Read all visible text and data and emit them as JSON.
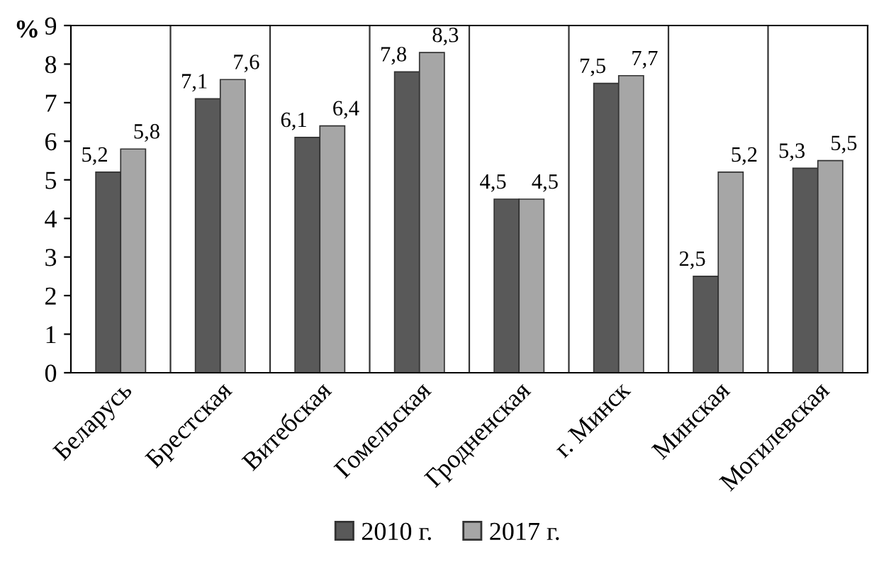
{
  "chart_data": {
    "type": "bar",
    "ylabel": "%",
    "categories": [
      "Беларусь",
      "Брестская",
      "Витебская",
      "Гомельская",
      "Гродненская",
      "г. Минск",
      "Минская",
      "Могилевская"
    ],
    "series": [
      {
        "name": "2010 г.",
        "color": "#595959",
        "values": [
          5.2,
          7.1,
          6.1,
          7.8,
          4.5,
          7.5,
          2.5,
          5.3
        ],
        "value_labels": [
          "5,2",
          "7,1",
          "6,1",
          "7,8",
          "4,5",
          "7,5",
          "2,5",
          "5,3"
        ]
      },
      {
        "name": "2017 г.",
        "color": "#a6a6a6",
        "values": [
          5.8,
          7.6,
          6.4,
          8.3,
          4.5,
          7.7,
          5.2,
          5.5
        ],
        "value_labels": [
          "5,8",
          "7,6",
          "6,4",
          "8,3",
          "4,5",
          "7,7",
          "5,2",
          "5,5"
        ]
      }
    ],
    "ylim": [
      0,
      9
    ],
    "yticks": [
      0,
      1,
      2,
      3,
      4,
      5,
      6,
      7,
      8,
      9
    ],
    "grid": "x",
    "legend": "bottom"
  }
}
